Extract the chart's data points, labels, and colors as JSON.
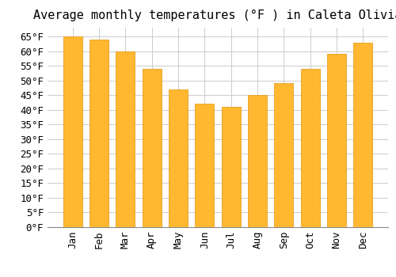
{
  "title": "Average monthly temperatures (°F ) in Caleta Olivia",
  "months": [
    "Jan",
    "Feb",
    "Mar",
    "Apr",
    "May",
    "Jun",
    "Jul",
    "Aug",
    "Sep",
    "Oct",
    "Nov",
    "Dec"
  ],
  "values": [
    65,
    64,
    60,
    54,
    47,
    42,
    41,
    45,
    49,
    54,
    59,
    63
  ],
  "bar_color": "#FFB830",
  "bar_edge_color": "#E8A020",
  "background_color": "#FFFFFF",
  "plot_bg_color": "#FFFFFF",
  "grid_color": "#CCCCCC",
  "ylim": [
    0,
    68
  ],
  "yticks": [
    0,
    5,
    10,
    15,
    20,
    25,
    30,
    35,
    40,
    45,
    50,
    55,
    60,
    65
  ],
  "title_fontsize": 11,
  "tick_fontsize": 9,
  "ylabel_suffix": "°F"
}
